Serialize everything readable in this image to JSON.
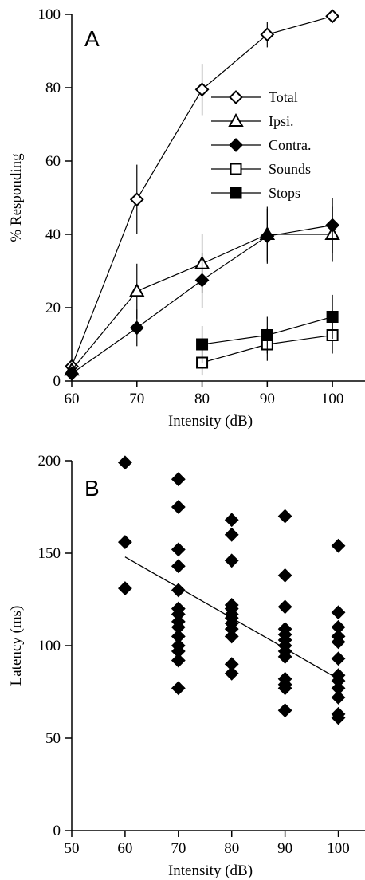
{
  "chart_data": [
    {
      "type": "line",
      "panel_label": "A",
      "xlabel": "Intensity (dB)",
      "ylabel": "% Responding",
      "xlim": [
        60,
        105
      ],
      "ylim": [
        0,
        100
      ],
      "xticks": [
        "60",
        "70",
        "80",
        "90",
        "100"
      ],
      "yticks": [
        "0",
        "20",
        "40",
        "60",
        "80",
        "100"
      ],
      "legend_position": "center-right",
      "series": [
        {
          "name": "Total",
          "marker": "diamond-open",
          "x": [
            60,
            70,
            80,
            90,
            100
          ],
          "y": [
            4,
            49.5,
            79.5,
            94.5,
            99.5
          ],
          "err": [
            0,
            9.5,
            7,
            3.5,
            0
          ]
        },
        {
          "name": "Ipsi.",
          "marker": "triangle-open",
          "x": [
            60,
            70,
            80,
            90,
            100
          ],
          "y": [
            3,
            24.5,
            32,
            40,
            40
          ],
          "err": [
            0,
            7.5,
            8,
            7.5,
            7.5
          ]
        },
        {
          "name": "Contra.",
          "marker": "diamond-filled",
          "x": [
            60,
            70,
            80,
            90,
            100
          ],
          "y": [
            2,
            14.5,
            27.5,
            39.5,
            42.5
          ],
          "err": [
            0,
            5,
            7.5,
            7.5,
            7.5
          ]
        },
        {
          "name": "Sounds",
          "marker": "square-open",
          "x": [
            80,
            90,
            100
          ],
          "y": [
            5,
            10,
            12.5
          ],
          "err": [
            3.5,
            4.5,
            5
          ]
        },
        {
          "name": "Stops",
          "marker": "square-filled",
          "x": [
            80,
            90,
            100
          ],
          "y": [
            10,
            12.5,
            17.5
          ],
          "err": [
            5,
            5,
            6
          ]
        }
      ]
    },
    {
      "type": "scatter",
      "panel_label": "B",
      "xlabel": "Intensity (dB)",
      "ylabel": "Latency (ms)",
      "xlim": [
        50,
        105
      ],
      "ylim": [
        0,
        200
      ],
      "xticks": [
        "50",
        "60",
        "70",
        "80",
        "90",
        "100"
      ],
      "yticks": [
        "0",
        "50",
        "100",
        "150",
        "200"
      ],
      "points": [
        [
          60,
          199
        ],
        [
          60,
          156
        ],
        [
          60,
          131
        ],
        [
          70,
          190
        ],
        [
          70,
          175
        ],
        [
          70,
          152
        ],
        [
          70,
          143
        ],
        [
          70,
          130
        ],
        [
          70,
          120
        ],
        [
          70,
          117
        ],
        [
          70,
          113
        ],
        [
          70,
          110
        ],
        [
          70,
          105
        ],
        [
          70,
          100
        ],
        [
          70,
          97
        ],
        [
          70,
          92
        ],
        [
          70,
          77
        ],
        [
          80,
          168
        ],
        [
          80,
          160
        ],
        [
          80,
          146
        ],
        [
          80,
          122
        ],
        [
          80,
          120
        ],
        [
          80,
          117
        ],
        [
          80,
          115
        ],
        [
          80,
          112
        ],
        [
          80,
          109
        ],
        [
          80,
          105
        ],
        [
          80,
          90
        ],
        [
          80,
          85
        ],
        [
          90,
          170
        ],
        [
          90,
          138
        ],
        [
          90,
          121
        ],
        [
          90,
          109
        ],
        [
          90,
          106
        ],
        [
          90,
          103
        ],
        [
          90,
          100
        ],
        [
          90,
          97
        ],
        [
          90,
          94
        ],
        [
          90,
          82
        ],
        [
          90,
          79
        ],
        [
          90,
          77
        ],
        [
          90,
          65
        ],
        [
          100,
          154
        ],
        [
          100,
          118
        ],
        [
          100,
          110
        ],
        [
          100,
          105
        ],
        [
          100,
          102
        ],
        [
          100,
          93
        ],
        [
          100,
          84
        ],
        [
          100,
          81
        ],
        [
          100,
          77
        ],
        [
          100,
          72
        ],
        [
          100,
          63
        ],
        [
          100,
          61
        ]
      ],
      "trendline": {
        "x": [
          60,
          100
        ],
        "y": [
          148,
          82
        ]
      }
    }
  ]
}
